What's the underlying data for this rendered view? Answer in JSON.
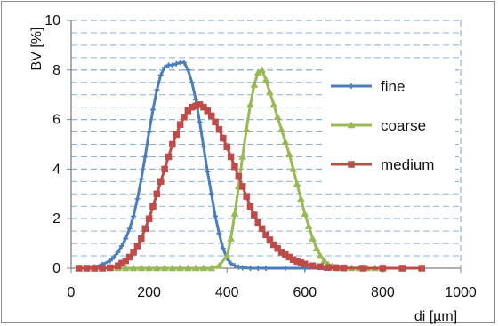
{
  "chart_data": {
    "type": "line",
    "title": "",
    "xlabel": "di [µm]",
    "ylabel": "BV [%]",
    "xlim": [
      0,
      1000
    ],
    "ylim": [
      0,
      10
    ],
    "x_ticks": [
      "0",
      "200",
      "400",
      "600",
      "800",
      "1000"
    ],
    "y_ticks": [
      "0",
      "2",
      "4",
      "6",
      "8",
      "10"
    ],
    "grid": "horizontal dashed",
    "legend_position": "right",
    "series": [
      {
        "name": "fine",
        "color": "#4a7ebb",
        "marker": "plus",
        "x": [
          20,
          40,
          60,
          80,
          100,
          110,
          120,
          130,
          140,
          150,
          160,
          170,
          180,
          190,
          200,
          210,
          220,
          230,
          240,
          250,
          260,
          270,
          280,
          290,
          300,
          310,
          320,
          330,
          340,
          350,
          360,
          370,
          380,
          390,
          400,
          410,
          420,
          430,
          440,
          460,
          480,
          500,
          550,
          600,
          650,
          700,
          750,
          800,
          850,
          900
        ],
        "y": [
          0,
          0,
          0.05,
          0.15,
          0.3,
          0.45,
          0.65,
          0.9,
          1.2,
          1.6,
          2.1,
          2.8,
          3.6,
          4.5,
          5.5,
          6.4,
          7.2,
          7.8,
          8.1,
          8.2,
          8.2,
          8.25,
          8.3,
          8.3,
          8.0,
          7.5,
          6.8,
          5.9,
          4.9,
          3.9,
          3.0,
          2.1,
          1.4,
          0.8,
          0.4,
          0.2,
          0.1,
          0.05,
          0.02,
          0,
          0,
          0,
          0,
          0,
          0,
          0,
          0,
          0,
          0,
          0
        ]
      },
      {
        "name": "coarse",
        "color": "#98b954",
        "marker": "triangle",
        "x": [
          20,
          40,
          60,
          80,
          100,
          120,
          140,
          160,
          180,
          200,
          220,
          240,
          260,
          280,
          300,
          320,
          340,
          360,
          380,
          400,
          410,
          420,
          430,
          440,
          450,
          460,
          470,
          480,
          490,
          500,
          510,
          520,
          530,
          540,
          550,
          560,
          570,
          580,
          590,
          600,
          610,
          620,
          630,
          640,
          650,
          660,
          670,
          680,
          690,
          700,
          720,
          740,
          760,
          780,
          800,
          850,
          900
        ],
        "y": [
          0,
          0,
          0,
          0,
          0,
          0,
          0,
          0,
          0,
          0,
          0,
          0,
          0,
          0,
          0,
          0,
          0,
          0,
          0.1,
          0.5,
          1.2,
          2.2,
          3.3,
          4.5,
          5.6,
          6.6,
          7.4,
          7.9,
          8.0,
          7.6,
          7.1,
          6.6,
          6.1,
          5.6,
          5.1,
          4.6,
          4.0,
          3.4,
          2.8,
          2.2,
          1.7,
          1.2,
          0.8,
          0.5,
          0.3,
          0.15,
          0.08,
          0.03,
          0,
          0,
          0,
          0,
          0,
          0,
          0,
          0,
          0
        ]
      },
      {
        "name": "medium",
        "color": "#be4b48",
        "marker": "square",
        "x": [
          20,
          40,
          60,
          80,
          100,
          120,
          130,
          140,
          150,
          160,
          170,
          180,
          190,
          200,
          210,
          220,
          230,
          240,
          250,
          260,
          270,
          280,
          290,
          300,
          310,
          320,
          330,
          340,
          350,
          360,
          370,
          380,
          390,
          400,
          410,
          420,
          430,
          440,
          450,
          460,
          470,
          480,
          490,
          500,
          510,
          520,
          530,
          540,
          550,
          560,
          570,
          580,
          590,
          600,
          620,
          640,
          660,
          680,
          700,
          750,
          800,
          850,
          900
        ],
        "y": [
          0,
          0,
          0,
          0,
          0.02,
          0.1,
          0.2,
          0.3,
          0.45,
          0.65,
          0.9,
          1.2,
          1.6,
          2.0,
          2.5,
          3.0,
          3.5,
          4.0,
          4.5,
          5.0,
          5.4,
          5.8,
          6.1,
          6.35,
          6.5,
          6.55,
          6.6,
          6.5,
          6.35,
          6.15,
          5.9,
          5.6,
          5.25,
          4.9,
          4.5,
          4.1,
          3.7,
          3.3,
          2.9,
          2.5,
          2.15,
          1.85,
          1.6,
          1.35,
          1.15,
          0.95,
          0.8,
          0.65,
          0.55,
          0.45,
          0.35,
          0.28,
          0.22,
          0.17,
          0.1,
          0.06,
          0.03,
          0.02,
          0.01,
          0,
          0,
          0,
          0
        ]
      }
    ]
  }
}
